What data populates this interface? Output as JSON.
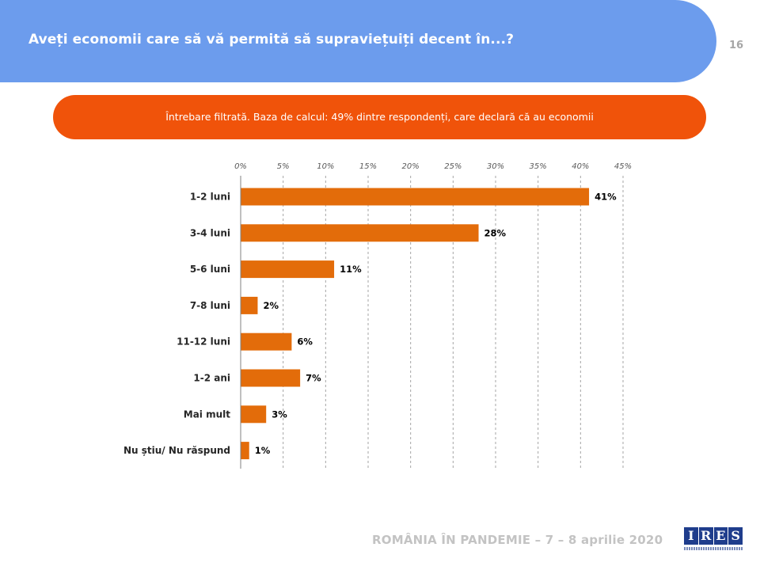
{
  "header": {
    "title": "Aveți economii care să vă permită să supraviețuiți  decent în...?",
    "page_number": "16",
    "color": "#6c9ced"
  },
  "filter_note": {
    "text": "Întrebare filtrată. Baza de calcul: 49% dintre respondenți, care declară că au economii",
    "color": "#f0530a"
  },
  "footer": {
    "text": "ROMÂNIA ÎN PANDEMIE – 7 – 8 aprilie 2020",
    "logo_letters": [
      "I",
      "R",
      "E",
      "S"
    ],
    "logo_color": "#1f3d8c"
  },
  "chart_data": {
    "type": "bar",
    "orientation": "horizontal",
    "categories": [
      "1-2 luni",
      "3-4 luni",
      "5-6 luni",
      "7-8 luni",
      "11-12 luni",
      "1-2 ani",
      "Mai mult",
      "Nu știu/ Nu răspund"
    ],
    "values": [
      41,
      28,
      11,
      2,
      6,
      7,
      3,
      1
    ],
    "value_labels": [
      "41%",
      "28%",
      "11%",
      "2%",
      "6%",
      "7%",
      "3%",
      "1%"
    ],
    "xlim": [
      0,
      45
    ],
    "ticks": [
      0,
      5,
      10,
      15,
      20,
      25,
      30,
      35,
      40,
      45
    ],
    "tick_labels": [
      "0%",
      "5%",
      "10%",
      "15%",
      "20%",
      "25%",
      "30%",
      "35%",
      "40%",
      "45%"
    ],
    "axis_position": "top",
    "grid": true,
    "bar_color": "#e36c0a"
  }
}
